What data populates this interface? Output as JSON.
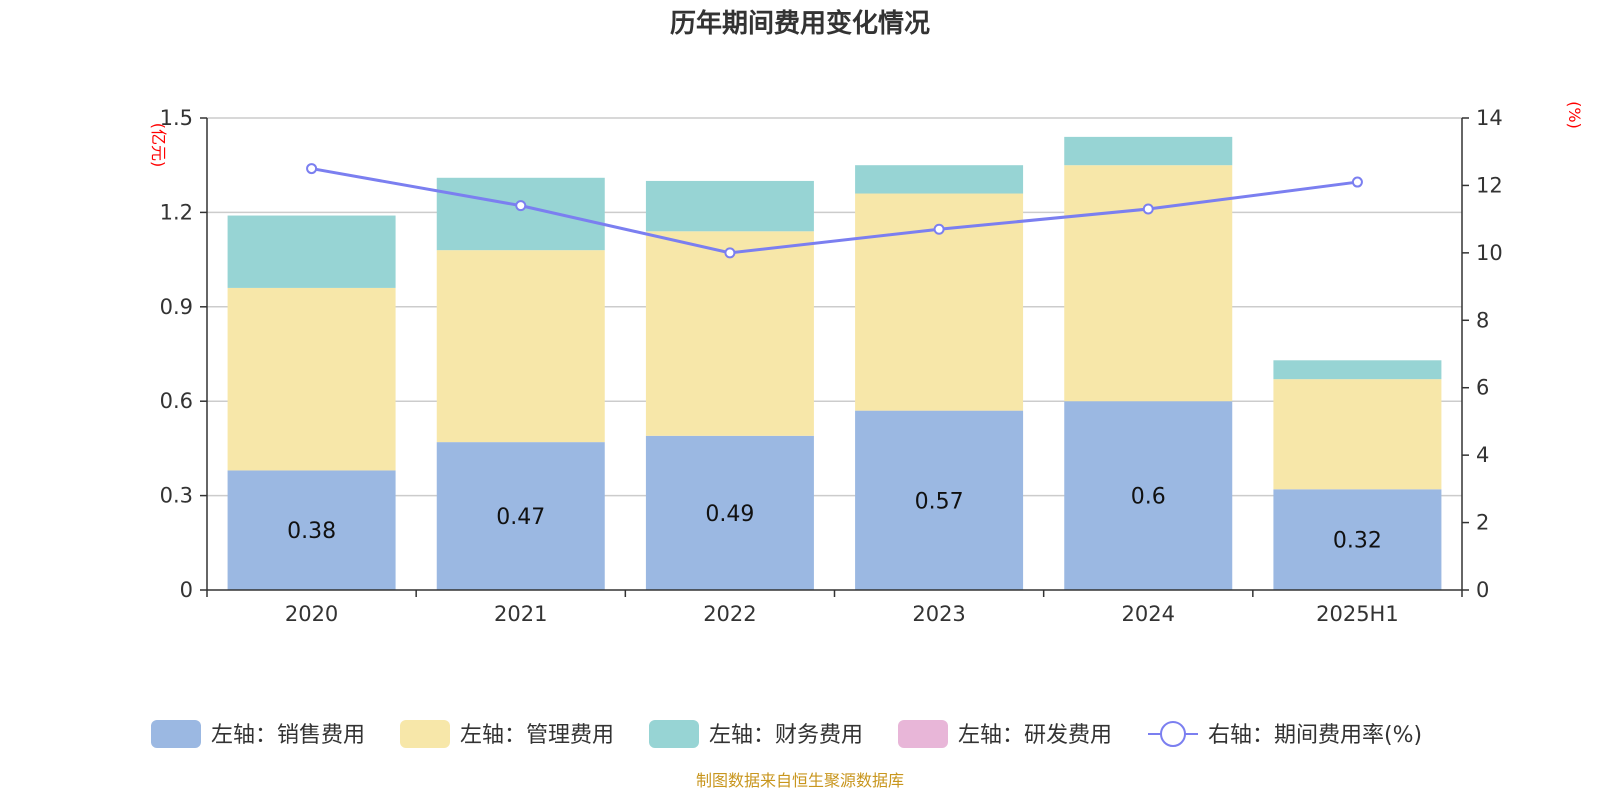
{
  "chart_data": {
    "type": "bar",
    "stacked": true,
    "title": "历年期间费用变化情况",
    "categories": [
      "2020",
      "2021",
      "2022",
      "2023",
      "2024",
      "2025H1"
    ],
    "y_left": {
      "unit": "(亿元)",
      "ylim": [
        0,
        1.5
      ],
      "ticks": [
        "0",
        "0.3",
        "0.6",
        "0.9",
        "1.2",
        "1.5"
      ]
    },
    "y_right": {
      "unit": "(%)",
      "ylim": [
        0,
        14
      ],
      "ticks": [
        "0",
        "2",
        "4",
        "6",
        "8",
        "10",
        "12",
        "14"
      ]
    },
    "grid": true,
    "legend_position": "bottom",
    "series": [
      {
        "name": "左轴：销售费用",
        "type": "bar",
        "axis": "left",
        "color": "#9bb8e2",
        "values": [
          0.38,
          0.47,
          0.49,
          0.57,
          0.6,
          0.32
        ],
        "labels": [
          "0.38",
          "0.47",
          "0.49",
          "0.57",
          "0.6",
          "0.32"
        ]
      },
      {
        "name": "左轴：管理费用",
        "type": "bar",
        "axis": "left",
        "color": "#f7e7a9",
        "values": [
          0.58,
          0.61,
          0.65,
          0.69,
          0.75,
          0.35
        ]
      },
      {
        "name": "左轴：财务费用",
        "type": "bar",
        "axis": "left",
        "color": "#97d4d4",
        "values": [
          0.23,
          0.23,
          0.16,
          0.09,
          0.09,
          0.06
        ]
      },
      {
        "name": "左轴：研发费用",
        "type": "bar",
        "axis": "left",
        "color": "#e8b6d8",
        "values": [
          0,
          0,
          0,
          0,
          0,
          0
        ]
      },
      {
        "name": "右轴：期间费用率(%)",
        "type": "line",
        "axis": "right",
        "color": "#7b7ff0",
        "values": [
          12.5,
          11.4,
          10.0,
          10.7,
          11.3,
          12.1
        ]
      }
    ],
    "source": "制图数据来自恒生聚源数据库"
  }
}
